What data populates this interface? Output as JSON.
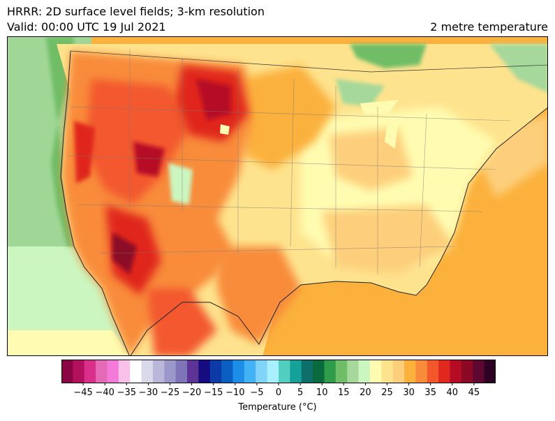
{
  "header": {
    "line1": "HRRR: 2D surface level fields; 3-km resolution",
    "line2": "Valid: 00:00 UTC 19 Jul 2021",
    "field": "2 metre temperature"
  },
  "colorbar": {
    "label": "Temperature (°C)",
    "min": -50,
    "max": 50,
    "ticks": [
      "-45",
      "-40",
      "-35",
      "-30",
      "-25",
      "-20",
      "-15",
      "-10",
      "-5",
      "0",
      "5",
      "10",
      "15",
      "20",
      "25",
      "30",
      "35",
      "40",
      "45"
    ],
    "colors": [
      "#8a0543",
      "#b3105e",
      "#d92f8a",
      "#e56ab5",
      "#f27ad9",
      "#f9c1e8",
      "#ffffff",
      "#d9d9ea",
      "#b9b8db",
      "#9b98ca",
      "#7f74b8",
      "#5d3496",
      "#160b80",
      "#0c3ba8",
      "#0b5fc2",
      "#1d8ee8",
      "#43b2f5",
      "#7fd4f8",
      "#a8f0ff",
      "#53cfbf",
      "#16a09a",
      "#0d6e6a",
      "#0a6a3d",
      "#2f9c4b",
      "#6fbd66",
      "#a5d89a",
      "#cbf6bf",
      "#fffcb1",
      "#fee38e",
      "#fdcf7c",
      "#fbb13c",
      "#f88c3a",
      "#f3582d",
      "#e0281f",
      "#b60b25",
      "#8c0926",
      "#5d0731",
      "#2e0023"
    ]
  },
  "map": {
    "ocean_color": "#fbb13c",
    "pacific_color": "#a0d796"
  }
}
